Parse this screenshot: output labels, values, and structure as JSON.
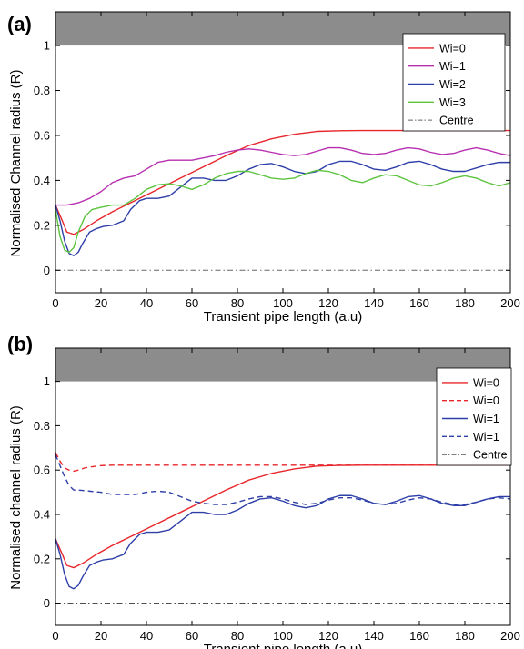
{
  "chart_data": [
    {
      "panel": "(a)",
      "type": "line",
      "xlabel": "Transient pipe length (a.u)",
      "ylabel": "Normalised Channel radius (R)",
      "xlim": [
        0,
        200
      ],
      "ylim": [
        -0.1,
        1.15
      ],
      "xticks": [
        0,
        20,
        40,
        60,
        80,
        100,
        120,
        140,
        160,
        180,
        200
      ],
      "yticks": [
        0,
        0.2,
        0.4,
        0.6,
        0.8,
        1
      ],
      "ytick_labels": [
        "0",
        "0.2",
        "0.4",
        "0.6",
        "0.8",
        "1"
      ],
      "wall_band": [
        1.0,
        1.15
      ],
      "wall_color": "#8c8c8c",
      "legend_position": "top-right",
      "grid": false,
      "series": [
        {
          "name": "Wi=0",
          "color": "#e8262b",
          "dash": "solid",
          "x": [
            0,
            3,
            5,
            8,
            12,
            18,
            25,
            35,
            45,
            55,
            65,
            75,
            85,
            95,
            105,
            115,
            125,
            135,
            145,
            155,
            165,
            175,
            185,
            195,
            200
          ],
          "y": [
            0.29,
            0.22,
            0.17,
            0.16,
            0.18,
            0.22,
            0.26,
            0.31,
            0.36,
            0.41,
            0.46,
            0.51,
            0.555,
            0.585,
            0.605,
            0.618,
            0.621,
            0.622,
            0.622,
            0.622,
            0.622,
            0.622,
            0.622,
            0.622,
            0.622
          ]
        },
        {
          "name": "Wi=1",
          "color": "#b72fb0",
          "dash": "solid",
          "x": [
            0,
            5,
            10,
            15,
            20,
            25,
            30,
            35,
            40,
            45,
            50,
            55,
            60,
            65,
            70,
            75,
            80,
            85,
            90,
            95,
            100,
            105,
            110,
            115,
            120,
            125,
            130,
            135,
            140,
            145,
            150,
            155,
            160,
            165,
            170,
            175,
            180,
            185,
            190,
            195,
            200
          ],
          "y": [
            0.29,
            0.29,
            0.3,
            0.32,
            0.35,
            0.39,
            0.41,
            0.42,
            0.45,
            0.48,
            0.49,
            0.49,
            0.49,
            0.5,
            0.51,
            0.525,
            0.535,
            0.54,
            0.535,
            0.525,
            0.515,
            0.51,
            0.515,
            0.53,
            0.545,
            0.545,
            0.535,
            0.52,
            0.515,
            0.52,
            0.535,
            0.545,
            0.54,
            0.525,
            0.515,
            0.52,
            0.535,
            0.545,
            0.535,
            0.52,
            0.51
          ]
        },
        {
          "name": "Wi=2",
          "color": "#2e3fa8",
          "dash": "solid",
          "x": [
            0,
            2,
            4,
            6,
            8,
            10,
            12,
            15,
            18,
            21,
            25,
            30,
            33,
            37,
            40,
            45,
            50,
            55,
            60,
            65,
            70,
            75,
            80,
            85,
            90,
            95,
            100,
            105,
            110,
            115,
            120,
            125,
            130,
            135,
            140,
            145,
            150,
            155,
            160,
            165,
            170,
            175,
            180,
            185,
            190,
            195,
            200
          ],
          "y": [
            0.29,
            0.22,
            0.13,
            0.075,
            0.065,
            0.08,
            0.12,
            0.17,
            0.185,
            0.195,
            0.2,
            0.22,
            0.27,
            0.31,
            0.32,
            0.32,
            0.33,
            0.37,
            0.41,
            0.41,
            0.4,
            0.4,
            0.42,
            0.45,
            0.47,
            0.475,
            0.46,
            0.44,
            0.43,
            0.44,
            0.47,
            0.485,
            0.485,
            0.47,
            0.45,
            0.445,
            0.46,
            0.48,
            0.485,
            0.47,
            0.45,
            0.44,
            0.44,
            0.455,
            0.47,
            0.48,
            0.48
          ]
        },
        {
          "name": "Wi=3",
          "color": "#5dc43f",
          "dash": "solid",
          "x": [
            0,
            2,
            4,
            6,
            8,
            10,
            13,
            16,
            20,
            25,
            30,
            35,
            40,
            45,
            50,
            55,
            60,
            65,
            70,
            75,
            80,
            85,
            90,
            95,
            100,
            105,
            110,
            115,
            120,
            125,
            130,
            135,
            140,
            145,
            150,
            155,
            160,
            165,
            170,
            175,
            180,
            185,
            190,
            195,
            200
          ],
          "y": [
            0.27,
            0.15,
            0.09,
            0.08,
            0.1,
            0.17,
            0.24,
            0.27,
            0.28,
            0.29,
            0.29,
            0.32,
            0.36,
            0.38,
            0.385,
            0.375,
            0.36,
            0.38,
            0.41,
            0.43,
            0.44,
            0.44,
            0.425,
            0.41,
            0.405,
            0.41,
            0.43,
            0.445,
            0.44,
            0.425,
            0.4,
            0.39,
            0.41,
            0.425,
            0.42,
            0.4,
            0.38,
            0.375,
            0.39,
            0.41,
            0.42,
            0.41,
            0.39,
            0.375,
            0.39
          ]
        },
        {
          "name": "Centre",
          "color": "#666666",
          "dash": "dashdot",
          "x": [
            0,
            200
          ],
          "y": [
            0,
            0
          ]
        }
      ]
    },
    {
      "panel": "(b)",
      "type": "line",
      "xlabel": "Transient pipe length (a.u)",
      "ylabel": "Normalised channel radius (R)",
      "xlim": [
        0,
        200
      ],
      "ylim": [
        -0.1,
        1.15
      ],
      "xticks": [
        0,
        20,
        40,
        60,
        80,
        100,
        120,
        140,
        160,
        180,
        200
      ],
      "yticks": [
        0,
        0.2,
        0.4,
        0.6,
        0.8,
        1
      ],
      "ytick_labels": [
        "0",
        "0.2",
        "0.4",
        "0.6",
        "0.8",
        "1"
      ],
      "wall_band": [
        1.0,
        1.15
      ],
      "wall_color": "#8c8c8c",
      "legend_position": "top-right",
      "grid": false,
      "series": [
        {
          "name": "Wi=0",
          "color": "#e8262b",
          "dash": "solid",
          "x": [
            0,
            3,
            5,
            8,
            12,
            18,
            25,
            35,
            45,
            55,
            65,
            75,
            85,
            95,
            105,
            115,
            125,
            135,
            145,
            155,
            165,
            175,
            185,
            195,
            200
          ],
          "y": [
            0.29,
            0.22,
            0.17,
            0.16,
            0.18,
            0.22,
            0.26,
            0.31,
            0.36,
            0.41,
            0.46,
            0.51,
            0.555,
            0.585,
            0.605,
            0.618,
            0.621,
            0.622,
            0.622,
            0.622,
            0.622,
            0.622,
            0.622,
            0.622,
            0.622
          ]
        },
        {
          "name": "Wi=0",
          "color": "#e8262b",
          "dash": "dashed",
          "x": [
            0,
            2,
            4,
            6,
            8,
            10,
            13,
            16,
            20,
            25,
            30,
            40,
            50,
            60,
            70,
            80,
            100,
            120,
            140,
            160,
            180,
            200
          ],
          "y": [
            0.68,
            0.64,
            0.61,
            0.6,
            0.595,
            0.6,
            0.61,
            0.615,
            0.62,
            0.622,
            0.622,
            0.622,
            0.622,
            0.622,
            0.622,
            0.622,
            0.622,
            0.622,
            0.622,
            0.622,
            0.622,
            0.622
          ]
        },
        {
          "name": "Wi=1",
          "color": "#2e3fa8",
          "dash": "solid",
          "x": [
            0,
            2,
            4,
            6,
            8,
            10,
            12,
            15,
            18,
            21,
            25,
            30,
            33,
            37,
            40,
            45,
            50,
            55,
            60,
            65,
            70,
            75,
            80,
            85,
            90,
            95,
            100,
            105,
            110,
            115,
            120,
            125,
            130,
            135,
            140,
            145,
            150,
            155,
            160,
            165,
            170,
            175,
            180,
            185,
            190,
            195,
            200
          ],
          "y": [
            0.29,
            0.22,
            0.13,
            0.075,
            0.065,
            0.08,
            0.12,
            0.17,
            0.185,
            0.195,
            0.2,
            0.22,
            0.27,
            0.31,
            0.32,
            0.32,
            0.33,
            0.37,
            0.41,
            0.41,
            0.4,
            0.4,
            0.42,
            0.45,
            0.47,
            0.475,
            0.46,
            0.44,
            0.43,
            0.44,
            0.47,
            0.485,
            0.485,
            0.47,
            0.45,
            0.445,
            0.46,
            0.48,
            0.485,
            0.47,
            0.45,
            0.44,
            0.44,
            0.455,
            0.47,
            0.48,
            0.48
          ]
        },
        {
          "name": "Wi=1",
          "color": "#2e3fa8",
          "dash": "dashed",
          "x": [
            0,
            2,
            4,
            6,
            8,
            10,
            15,
            20,
            25,
            30,
            35,
            40,
            45,
            50,
            55,
            60,
            65,
            70,
            75,
            80,
            85,
            90,
            95,
            100,
            105,
            110,
            115,
            120,
            125,
            130,
            135,
            140,
            145,
            150,
            155,
            160,
            165,
            170,
            175,
            180,
            185,
            190,
            195,
            200
          ],
          "y": [
            0.67,
            0.62,
            0.57,
            0.53,
            0.51,
            0.51,
            0.505,
            0.5,
            0.49,
            0.49,
            0.49,
            0.5,
            0.505,
            0.5,
            0.48,
            0.46,
            0.45,
            0.445,
            0.445,
            0.455,
            0.47,
            0.48,
            0.48,
            0.47,
            0.455,
            0.445,
            0.45,
            0.465,
            0.475,
            0.475,
            0.465,
            0.45,
            0.445,
            0.45,
            0.465,
            0.475,
            0.47,
            0.455,
            0.445,
            0.445,
            0.455,
            0.47,
            0.475,
            0.47
          ]
        },
        {
          "name": "Centre",
          "color": "#333333",
          "dash": "dashdot",
          "x": [
            0,
            200
          ],
          "y": [
            0,
            0
          ]
        }
      ]
    }
  ]
}
